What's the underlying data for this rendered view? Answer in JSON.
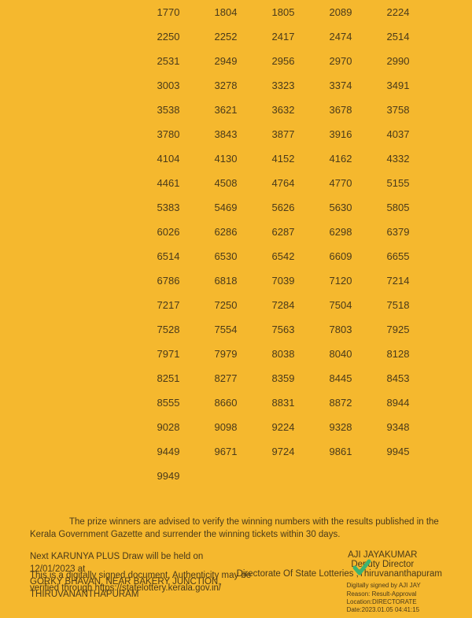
{
  "numbersGrid": {
    "columns": 5,
    "cellFontSize": 13,
    "cellColor": "#4a3a1a",
    "backgroundColor": "#f5b82e",
    "values": [
      "1770",
      "1804",
      "1805",
      "2089",
      "2224",
      "2250",
      "2252",
      "2417",
      "2474",
      "2514",
      "2531",
      "2949",
      "2956",
      "2970",
      "2990",
      "3003",
      "3278",
      "3323",
      "3374",
      "3491",
      "3538",
      "3621",
      "3632",
      "3678",
      "3758",
      "3780",
      "3843",
      "3877",
      "3916",
      "4037",
      "4104",
      "4130",
      "4152",
      "4162",
      "4332",
      "4461",
      "4508",
      "4764",
      "4770",
      "5155",
      "5383",
      "5469",
      "5626",
      "5630",
      "5805",
      "6026",
      "6286",
      "6287",
      "6298",
      "6379",
      "6514",
      "6530",
      "6542",
      "6609",
      "6655",
      "6786",
      "6818",
      "7039",
      "7120",
      "7214",
      "7217",
      "7250",
      "7284",
      "7504",
      "7518",
      "7528",
      "7554",
      "7563",
      "7803",
      "7925",
      "7971",
      "7979",
      "8038",
      "8040",
      "8128",
      "8251",
      "8277",
      "8359",
      "8445",
      "8453",
      "8555",
      "8660",
      "8831",
      "8872",
      "8944",
      "9028",
      "9098",
      "9224",
      "9328",
      "9348",
      "9449",
      "9671",
      "9724",
      "9861",
      "9945",
      "9949"
    ]
  },
  "advisoryText": "The prize winners are advised to verify the winning numbers with the results published in the Kerala Government Gazette and surrender the winning tickets within 30 days.",
  "nextDraw": {
    "line1": "Next KARUNYA PLUS Draw will be held on 12/01/2023 at",
    "line2": "GORKY BHAVAN,  NEAR BAKERY JUNCTION,",
    "line3": "THIRUVANANTHAPURAM"
  },
  "signature": {
    "name": "AJI JAYAKUMAR",
    "title": "Deputy Director",
    "org": "Directorate Of State Lotteries ,Thiruvananthapuram",
    "checkmarkColor": "#3cb371"
  },
  "digitalSignature": {
    "line1": "Digitally signed by AJI JAY",
    "line2": "Reason: Result-Approval",
    "line3": "Location:DIRECTORATE",
    "line4": "Date:2023.01.05 04:41:15"
  },
  "authenticity": {
    "line1": "This is a digitally signed document, Authenticity may be",
    "line2": "verified through https://statelottery.kerala.gov.in/"
  }
}
